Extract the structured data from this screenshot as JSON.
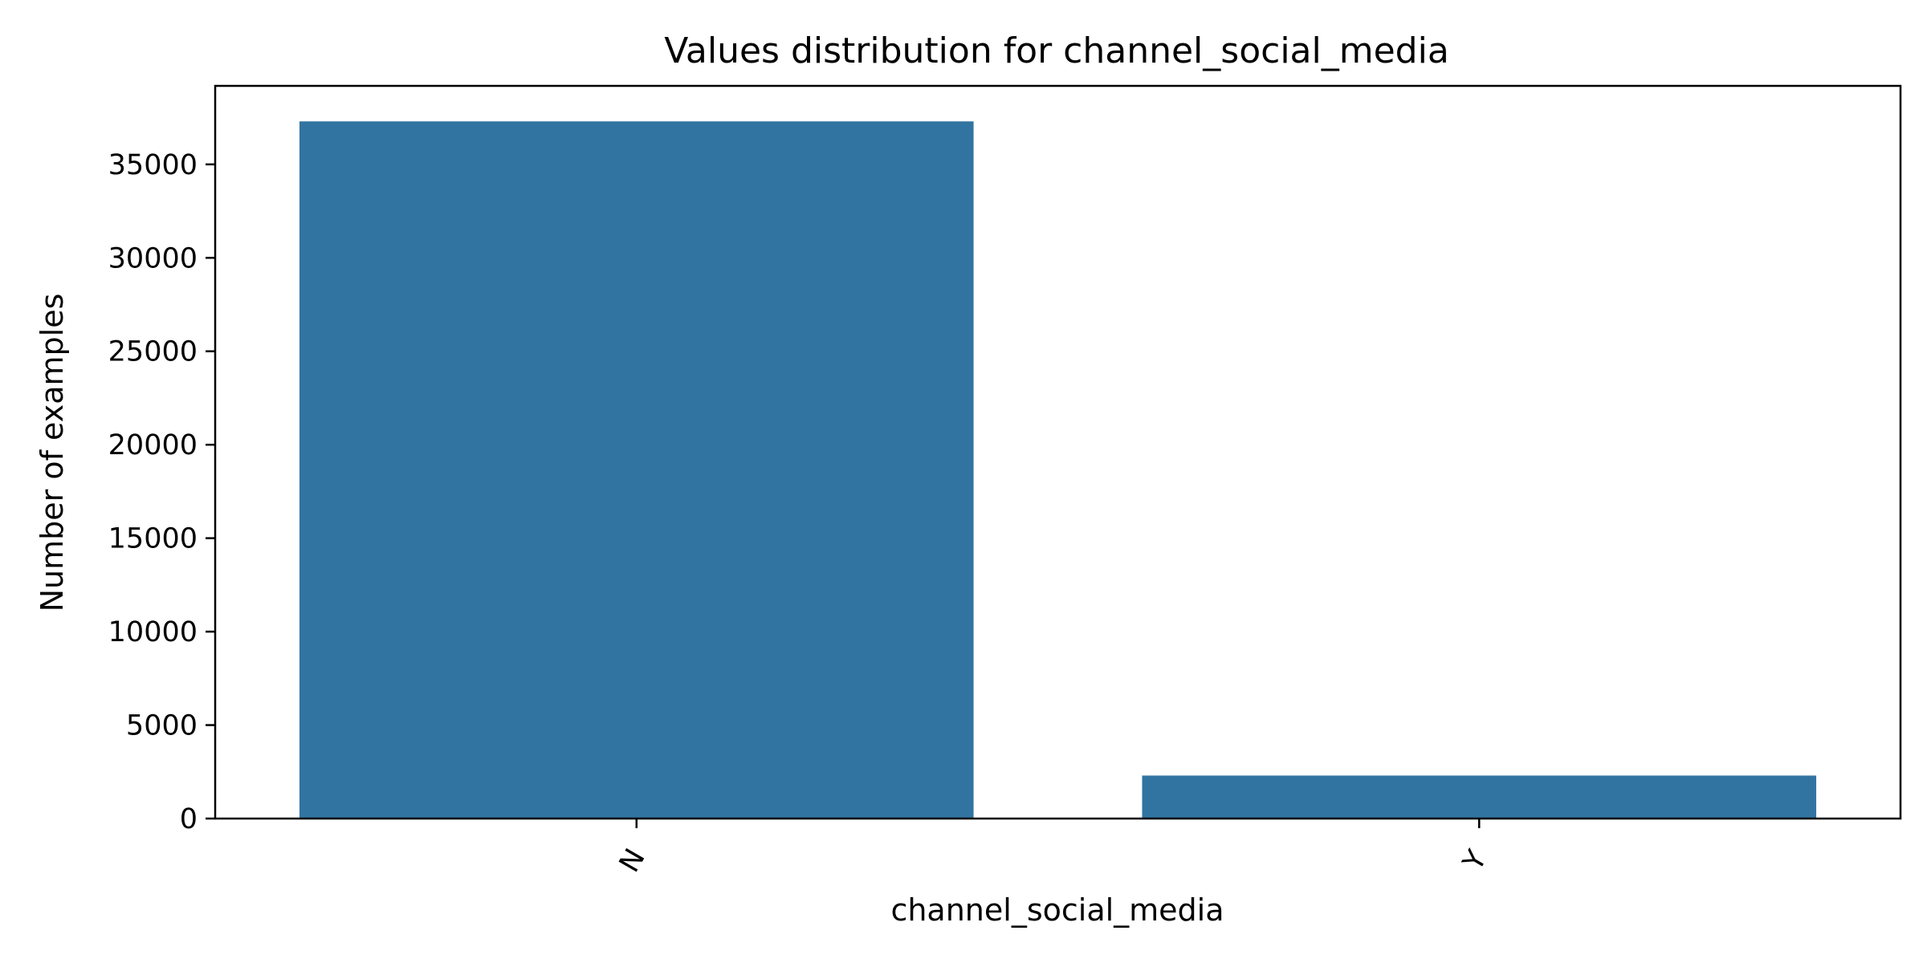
{
  "chart_data": {
    "type": "bar",
    "title": "Values distribution for channel_social_media",
    "xlabel": "channel_social_media",
    "ylabel": "Number of examples",
    "categories": [
      "N",
      "Y"
    ],
    "values": [
      37300,
      2300
    ],
    "ylim": [
      0,
      39200
    ],
    "yticks": [
      0,
      5000,
      10000,
      15000,
      20000,
      25000,
      30000,
      35000
    ],
    "ytick_labels": [
      "0",
      "5000",
      "10000",
      "15000",
      "20000",
      "25000",
      "30000",
      "35000"
    ],
    "xtick_rotation": -60,
    "bar_color": "#3274a1",
    "grid": false,
    "legend": "none"
  }
}
